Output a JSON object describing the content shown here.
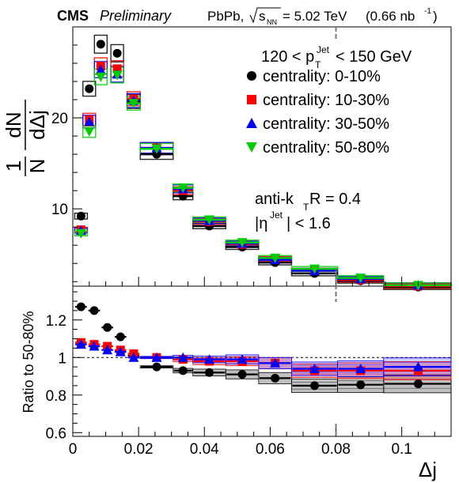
{
  "header": {
    "experiment": "CMS",
    "status": "Preliminary",
    "collision": "PbPb,",
    "energy_value": "= 5.02 TeV",
    "luminosity_prefix": "(0.66 nb",
    "luminosity_exp": "-1",
    "luminosity_suffix": ")"
  },
  "selection": {
    "pt_low": "120 < p",
    "pt_sub": "T",
    "pt_sup": "Jet",
    "pt_high": "< 150 GeV",
    "algo_prefix": "anti-k",
    "algo_sub": "T",
    "algo_suffix": " R = 0.4",
    "eta_prefix": "|η",
    "eta_sup": "Jet",
    "eta_suffix": "| < 1.6"
  },
  "legend": {
    "placement": "top-right",
    "entries": [
      {
        "label": "centrality: 0-10%",
        "color": "#000000",
        "marker": "circle"
      },
      {
        "label": "centrality: 10-30%",
        "color": "#ff0000",
        "marker": "square"
      },
      {
        "label": "centrality: 30-50%",
        "color": "#0000ff",
        "marker": "triangle-up"
      },
      {
        "label": "centrality: 50-80%",
        "color": "#00cc00",
        "marker": "triangle-down"
      }
    ]
  },
  "chart_data": [
    {
      "type": "scatter",
      "panel": "upper",
      "ylabel": "1/N dN/dΔj",
      "xlim": [
        0,
        0.115
      ],
      "ylim": [
        1.5,
        30
      ],
      "yticks": [
        10,
        20
      ],
      "x": [
        0.0025,
        0.005,
        0.0085,
        0.0135,
        0.0185,
        0.0255,
        0.0335,
        0.0415,
        0.0515,
        0.0615,
        0.0735,
        0.0875,
        0.105
      ],
      "series": [
        {
          "name": "centrality: 0-10%",
          "color": "#000000",
          "marker": "circle",
          "values": [
            9.2,
            23.2,
            28.1,
            27.1,
            21.8,
            16.0,
            11.4,
            8.1,
            5.8,
            4.1,
            2.9,
            2.1,
            1.4
          ]
        },
        {
          "name": "centrality: 10-30%",
          "color": "#ff0000",
          "marker": "square",
          "values": [
            7.7,
            19.8,
            25.7,
            25.4,
            22.1,
            16.7,
            12.0,
            8.6,
            6.1,
            4.5,
            3.2,
            2.2,
            1.5
          ]
        },
        {
          "name": "centrality: 30-50%",
          "color": "#0000ff",
          "marker": "triangle-up",
          "values": [
            7.6,
            19.6,
            25.3,
            24.8,
            21.9,
            16.7,
            12.2,
            8.7,
            6.2,
            4.4,
            3.2,
            2.3,
            1.6
          ]
        },
        {
          "name": "centrality: 50-80%",
          "color": "#00cc00",
          "marker": "triangle-down",
          "values": [
            7.3,
            18.5,
            24.5,
            24.7,
            21.6,
            16.6,
            12.3,
            8.8,
            6.3,
            4.6,
            3.4,
            2.4,
            1.6
          ]
        }
      ]
    },
    {
      "type": "scatter",
      "panel": "lower",
      "xlabel": "Δj",
      "ylabel": "Ratio to 50-80%",
      "xlim": [
        0,
        0.115
      ],
      "ylim": [
        0.58,
        1.38
      ],
      "yticks": [
        0.6,
        0.8,
        1,
        1.2
      ],
      "yticklabels": [
        "0.6",
        "0.8",
        "1",
        "1.2"
      ],
      "xticks": [
        0,
        0.02,
        0.04,
        0.06,
        0.08,
        0.1
      ],
      "xticklabels": [
        "0",
        "0.02",
        "0.04",
        "0.06",
        "0.08",
        "0.1"
      ],
      "reference_line": 1.0,
      "x": [
        0.0025,
        0.0065,
        0.0105,
        0.0145,
        0.0185,
        0.0255,
        0.0335,
        0.0415,
        0.0515,
        0.0615,
        0.0735,
        0.0875,
        0.105
      ],
      "series": [
        {
          "name": "centrality: 0-10%",
          "color": "#000000",
          "marker": "circle",
          "values": [
            1.27,
            1.25,
            1.16,
            1.11,
            1.01,
            0.95,
            0.93,
            0.92,
            0.91,
            0.89,
            0.85,
            0.855,
            0.86
          ]
        },
        {
          "name": "centrality: 10-30%",
          "color": "#ff0000",
          "marker": "square",
          "values": [
            1.08,
            1.07,
            1.06,
            1.04,
            1.02,
            1.0,
            0.99,
            0.98,
            0.98,
            0.97,
            0.93,
            0.93,
            0.93
          ]
        },
        {
          "name": "centrality: 30-50%",
          "color": "#0000ff",
          "marker": "triangle-up",
          "values": [
            1.07,
            1.06,
            1.04,
            1.03,
            1.0,
            1.0,
            1.0,
            0.99,
            0.99,
            0.97,
            0.94,
            0.94,
            0.95
          ]
        }
      ]
    }
  ]
}
